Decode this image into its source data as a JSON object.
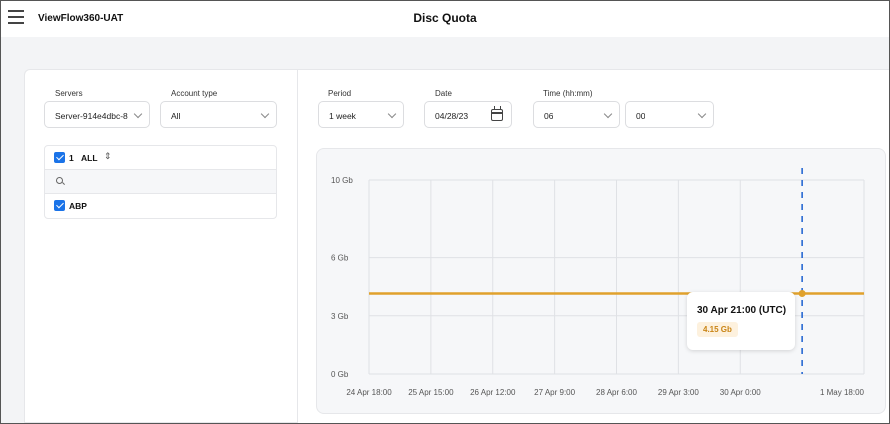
{
  "header": {
    "app_title": "ViewFlow360-UAT",
    "page_title": "Disc Quota"
  },
  "filters": {
    "servers": {
      "label": "Servers",
      "value": "Server-914e4dbc-8"
    },
    "account_type": {
      "label": "Account type",
      "value": "All"
    },
    "period": {
      "label": "Period",
      "value": "1 week"
    },
    "date": {
      "label": "Date",
      "value": "04/28/23"
    },
    "time": {
      "label": "Time (hh:mm)",
      "hour": "06",
      "minute": "00"
    }
  },
  "account_list": {
    "header": {
      "count": "1",
      "label": "ALL",
      "sort_glyph": "⇕"
    },
    "items": [
      {
        "label": "ABP",
        "checked": true
      }
    ]
  },
  "colors": {
    "series": "#e0a12c",
    "checkbox": "#1a73e8",
    "cursor": "#1a5fd0"
  },
  "chart_data": {
    "type": "line",
    "title": "",
    "xlabel": "",
    "ylabel": "",
    "y_ticks": [
      {
        "value": 0,
        "label": "0 Gb"
      },
      {
        "value": 3,
        "label": "3 Gb"
      },
      {
        "value": 6,
        "label": "6 Gb"
      },
      {
        "value": 10,
        "label": "10 Gb"
      }
    ],
    "ylim": [
      0,
      10
    ],
    "x_ticks": [
      "24 Apr 18:00",
      "25 Apr 15:00",
      "26 Apr 12:00",
      "27 Apr 9:00",
      "28 Apr 6:00",
      "29 Apr 3:00",
      "30 Apr 0:00",
      "1 May 18:00"
    ],
    "x_tick_hours": [
      0,
      21,
      42,
      63,
      84,
      105,
      126,
      168
    ],
    "xlim_hours": [
      0,
      168
    ],
    "series": [
      {
        "values_hours": [
          0,
          168
        ],
        "values": [
          4.15,
          4.15
        ]
      }
    ],
    "cursor": {
      "hour": 147,
      "value": 4.15
    },
    "tooltip": {
      "title": "30 Apr 21:00 (UTC)",
      "value": "4.15 Gb"
    },
    "grid": true
  }
}
